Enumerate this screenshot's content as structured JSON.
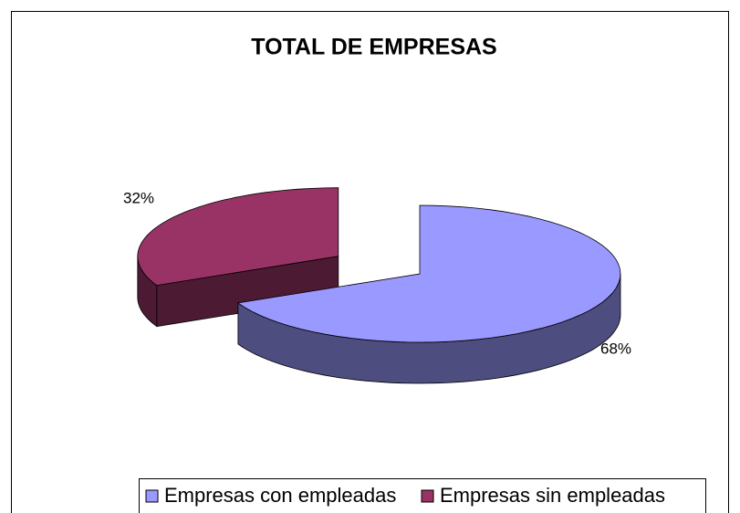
{
  "chart_data": {
    "type": "pie",
    "title": "TOTAL DE EMPRESAS",
    "categories": [
      "Empresas con empleadas",
      "Empresas sin empleadas"
    ],
    "values": [
      68,
      32
    ],
    "value_labels": [
      "68%",
      "32%"
    ],
    "colors": [
      "#9999ff",
      "#993366"
    ],
    "legend": "bottom"
  }
}
